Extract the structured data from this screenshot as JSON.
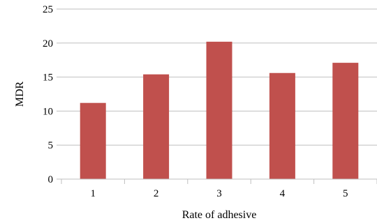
{
  "chart_data": {
    "type": "bar",
    "categories": [
      "1",
      "2",
      "3",
      "4",
      "5"
    ],
    "values": [
      11.2,
      15.4,
      20.2,
      15.6,
      17.1
    ],
    "xlabel": "Rate of adhesive",
    "ylabel": "MDR",
    "ylim": [
      0,
      25
    ],
    "yticks": [
      0,
      5,
      10,
      15,
      20,
      25
    ],
    "grid": true,
    "bar_color": "#c0504d",
    "grid_color": "#bfbfbf"
  }
}
